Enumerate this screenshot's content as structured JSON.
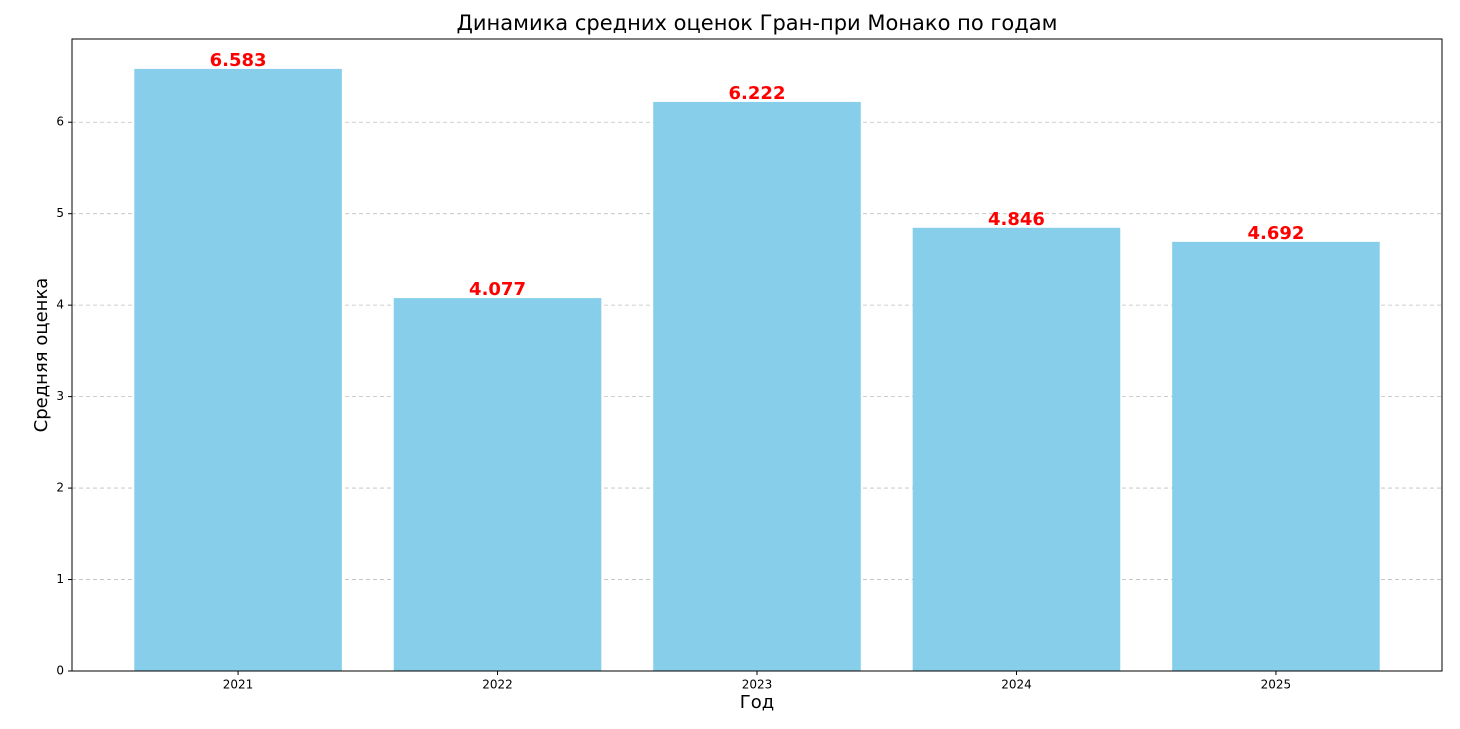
{
  "chart_data": {
    "type": "bar",
    "title": "Динамика средних оценок Гран-при Монако по годам",
    "x_label": "Год",
    "y_label": "Средняя оценка",
    "categories": [
      "2021",
      "2022",
      "2023",
      "2024",
      "2025"
    ],
    "values": [
      6.583,
      4.077,
      6.222,
      4.846,
      4.692
    ],
    "color": "#87ceeb",
    "value_label_color": "#ff0000",
    "ylim": [
      0,
      6.91
    ],
    "yticks": [
      0,
      1,
      2,
      3,
      4,
      5,
      6
    ],
    "grid": true
  }
}
